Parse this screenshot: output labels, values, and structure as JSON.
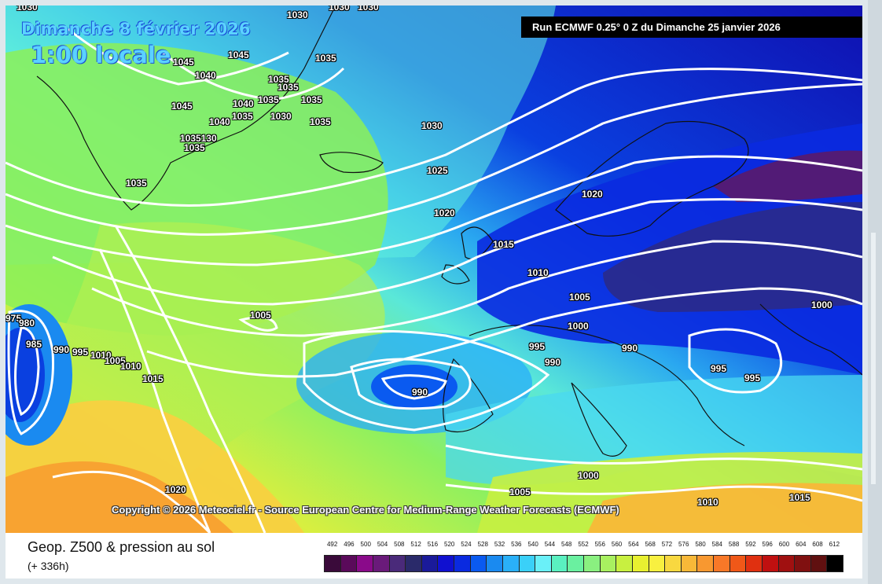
{
  "map": {
    "title_day": "Dimanche 8 février 2026",
    "title_time": "1:00 locale",
    "run_info": "Run ECMWF 0.25° 0 Z du Dimanche 25 janvier 2026",
    "copyright": "Copyright © 2026 Meteociel.fr - Source European Centre for Medium-Range Weather Forecasts (ECMWF)",
    "isobar_labels": [
      "1030",
      "1030",
      "1030",
      "1030",
      "1045",
      "1045",
      "1040",
      "1045",
      "1035",
      "1035",
      "1035",
      "1040",
      "1035",
      "1035",
      "1040",
      "1035",
      "1030",
      "1035",
      "1035130",
      "1035",
      "1035",
      "1030",
      "1025",
      "1020",
      "1020",
      "1015",
      "1010",
      "1005",
      "1000",
      "1000",
      "1005",
      "975",
      "980",
      "985",
      "990",
      "995",
      "1010",
      "1005",
      "1010",
      "1015",
      "995",
      "990",
      "990",
      "990",
      "995",
      "995",
      "1000",
      "1005",
      "1020",
      "1010",
      "1015"
    ]
  },
  "legend": {
    "title": "Geop. Z500 & pression au sol",
    "subtitle": "(+ 336h)",
    "scale_values": [
      "492",
      "496",
      "500",
      "504",
      "508",
      "512",
      "516",
      "520",
      "524",
      "528",
      "532",
      "536",
      "540",
      "544",
      "548",
      "552",
      "556",
      "560",
      "564",
      "568",
      "572",
      "576",
      "580",
      "584",
      "588",
      "592",
      "596",
      "600",
      "604",
      "608",
      "612"
    ],
    "scale_colors": [
      "#3a0a3a",
      "#5a0a5a",
      "#8a0a8a",
      "#6a1a7a",
      "#4a2a7a",
      "#2a2a6a",
      "#1a1a9a",
      "#1010d0",
      "#0a2ae0",
      "#0a5af0",
      "#1a8af0",
      "#2ab0f8",
      "#3ad0f8",
      "#6af0f8",
      "#5af0c0",
      "#6af0a0",
      "#8af080",
      "#a8f060",
      "#c8f040",
      "#e8f030",
      "#f8f040",
      "#f8d840",
      "#f8b838",
      "#f89830",
      "#f87828",
      "#f05818",
      "#e03010",
      "#c01010",
      "#a01010",
      "#801010",
      "#601010",
      "#000000"
    ]
  }
}
